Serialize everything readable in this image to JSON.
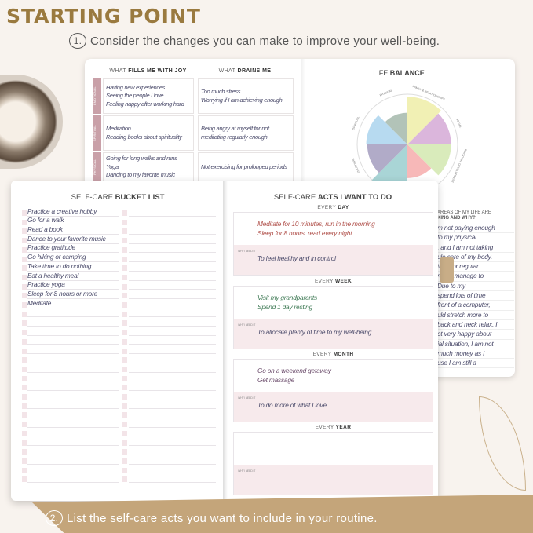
{
  "header": {
    "title": "STARTING POINT",
    "step1_num": "1.",
    "step1_text": "Consider the changes you can make to improve your well-being.",
    "step2_num": "2.",
    "step2_text": "List the self-care acts you want to include in your routine."
  },
  "joy_page": {
    "col1_pre": "WHAT ",
    "col1_bold": "FILLS ME WITH JOY",
    "col2_pre": "WHAT ",
    "col2_bold": "DRAINS ME",
    "rows": [
      {
        "label": "EMOTIONAL",
        "joy": [
          "Having new experiences",
          "Seeing the people I love",
          "Feeling happy after working hard"
        ],
        "drain": [
          "Too much stress",
          "Worrying if I am achieving enough"
        ]
      },
      {
        "label": "SPIRITUAL",
        "joy": [
          "Meditation",
          "Reading books about spirituality"
        ],
        "drain": [
          "Being angry at myself for not",
          "meditating regularly enough"
        ]
      },
      {
        "label": "PHYSICAL",
        "joy": [
          "Going for long walks and runs",
          "Yoga",
          "Dancing to my favorite music"
        ],
        "drain": [
          "Not exercising for prolonged periods"
        ]
      }
    ]
  },
  "life_balance": {
    "title_pre": "LIFE ",
    "title_bold": "BALANCE",
    "areas": [
      {
        "name": "FAMILY & RELATIONSHIPS",
        "color": "#f1f0b4",
        "level": 0.95
      },
      {
        "name": "SOCIAL",
        "color": "#dbb6dc",
        "level": 0.87
      },
      {
        "name": "PERSONAL DEVELOPMENT",
        "color": "#d9ebbb",
        "level": 0.87
      },
      {
        "name": "",
        "color": "#f7b8b8",
        "level": 0.67
      },
      {
        "name": "",
        "color": "#a9d5d6",
        "level": 1.0
      },
      {
        "name": "EMOTIONAL",
        "color": "#b1abc8",
        "level": 0.8
      },
      {
        "name": "SPIRITUAL",
        "color": "#b7daf0",
        "level": 0.82
      },
      {
        "name": "PHYSICAL",
        "color": "#b2c3b8",
        "level": 0.63
      }
    ],
    "question_1": "AREAS OF MY LIFE ARE",
    "question_2": "KING AND WHY?",
    "answer": [
      "m not paying enough",
      "to my physical",
      ", and I am not taking",
      "ulo care of my body.",
      "time for regular",
      "rarely manage to",
      "Due to my",
      "spend lots of time",
      "front of a computer,",
      "uld stretch more to",
      "back and neck relax. I",
      "ot very happy about",
      "ial situation, I am not",
      "much money as I",
      "use I am still a"
    ]
  },
  "bucket_list": {
    "title_pre": "SELF-CARE ",
    "title_bold": "BUCKET LIST",
    "items": [
      "Practice a creative hobby",
      "Go for a walk",
      "Read a book",
      "Dance to your favorite music",
      "Practice gratitude",
      "Go hiking or camping",
      "Take time to do nothing",
      "Eat a healthy meal",
      "Practice yoga",
      "Sleep for 8 hours or more",
      "Meditate"
    ]
  },
  "acts": {
    "title_pre": "SELF-CARE ",
    "title_bold": "ACTS I WANT TO DO",
    "why_label": "WHY I NEED IT",
    "sections": [
      {
        "pre": "EVERY ",
        "bold": "DAY",
        "lines": [
          "Meditate for 10 minutes, run in the morning",
          "Sleep for 8 hours, read every night"
        ],
        "why": "To feel healthy and in control",
        "ink": "#b0504a"
      },
      {
        "pre": "EVERY ",
        "bold": "WEEK",
        "lines": [
          "Visit my grandparents",
          "Spend 1 day resting"
        ],
        "why": "To allocate plenty of time to my well-being",
        "ink": "#3f7a55"
      },
      {
        "pre": "EVERY ",
        "bold": "MONTH",
        "lines": [
          "Go on a weekend getaway",
          "Get massage"
        ],
        "why": "To do more of what I love",
        "ink": "#6a4a6a"
      },
      {
        "pre": "EVERY ",
        "bold": "YEAR",
        "lines": [],
        "why": "",
        "ink": "#4a4a6a"
      }
    ]
  },
  "colors": {
    "title": "#9a7a3f",
    "band": "#c4a57a",
    "label_pink": "#c9a0a8",
    "why_bg": "#f7eaec"
  }
}
